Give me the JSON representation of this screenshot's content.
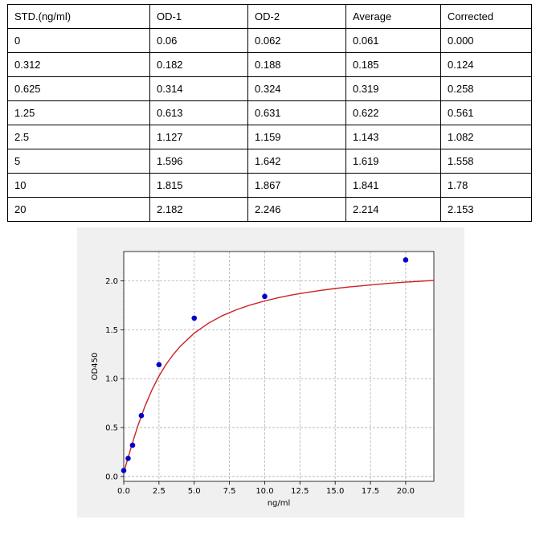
{
  "table": {
    "headers": [
      "STD.(ng/ml)",
      "OD-1",
      "OD-2",
      "Average",
      "Corrected"
    ],
    "rows": [
      [
        "0",
        "0.06",
        "0.062",
        "0.061",
        "0.000"
      ],
      [
        "0.312",
        "0.182",
        "0.188",
        "0.185",
        "0.124"
      ],
      [
        "0.625",
        "0.314",
        "0.324",
        "0.319",
        "0.258"
      ],
      [
        "1.25",
        "0.613",
        "0.631",
        "0.622",
        "0.561"
      ],
      [
        "2.5",
        "1.127",
        "1.159",
        "1.143",
        "1.082"
      ],
      [
        "5",
        "1.596",
        "1.642",
        "1.619",
        "1.558"
      ],
      [
        "10",
        "1.815",
        "1.867",
        "1.841",
        "1.78"
      ],
      [
        "20",
        "2.182",
        "2.246",
        "2.214",
        "2.153"
      ]
    ]
  },
  "chart_data": {
    "type": "scatter",
    "title": "",
    "xlabel": "ng/ml",
    "ylabel": "OD450",
    "xlim": [
      0,
      22
    ],
    "ylim": [
      -0.05,
      2.3
    ],
    "xticks": [
      0.0,
      2.5,
      5.0,
      7.5,
      10.0,
      12.5,
      15.0,
      17.5,
      20.0
    ],
    "yticks": [
      0.0,
      0.5,
      1.0,
      1.5,
      2.0
    ],
    "grid": true,
    "legend": "none",
    "series": [
      {
        "kind": "points",
        "color": "#0000cc",
        "x": [
          0,
          0.312,
          0.625,
          1.25,
          2.5,
          5,
          10,
          20
        ],
        "y": [
          0.061,
          0.185,
          0.319,
          0.622,
          1.143,
          1.619,
          1.841,
          2.214
        ]
      },
      {
        "kind": "fit-curve",
        "color": "#cc2222",
        "x": [
          0,
          0.25,
          0.5,
          0.75,
          1,
          1.5,
          2,
          2.5,
          3,
          3.5,
          4,
          5,
          6,
          7,
          8,
          9,
          10,
          11,
          12,
          13,
          14,
          15,
          16,
          17,
          18,
          19,
          20,
          21,
          22
        ],
        "y": [
          0.04,
          0.163,
          0.285,
          0.404,
          0.515,
          0.716,
          0.885,
          1.027,
          1.145,
          1.245,
          1.33,
          1.465,
          1.566,
          1.644,
          1.705,
          1.754,
          1.795,
          1.829,
          1.858,
          1.882,
          1.903,
          1.922,
          1.938,
          1.952,
          1.965,
          1.977,
          1.987,
          1.996,
          2.005
        ]
      }
    ]
  }
}
